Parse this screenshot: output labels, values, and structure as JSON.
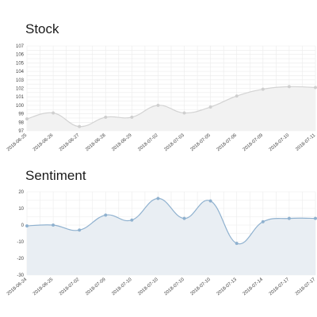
{
  "colors": {
    "stock_line": "#d3d3d3",
    "stock_fill": "#f2f2f2",
    "stock_point": "#cfcfcf",
    "sentiment_line": "#8fb1cf",
    "sentiment_fill": "#e9eef3",
    "sentiment_point": "#8fb1cf",
    "grid": "#ebebeb"
  },
  "chart_data": [
    {
      "type": "area",
      "title": "Stock",
      "xlabel": "",
      "ylabel": "",
      "ylim": [
        97,
        107
      ],
      "yticks": [
        97,
        98,
        99,
        100,
        101,
        102,
        103,
        104,
        105,
        106,
        107
      ],
      "grid": true,
      "categories": [
        "2018-06-25",
        "2018-06-26",
        "2018-06-27",
        "2018-06-28",
        "2018-06-29",
        "2018-07-02",
        "2018-07-03",
        "2018-07-05",
        "2018-07-06",
        "2018-07-09",
        "2018-07-10",
        "2018-07-11"
      ],
      "series": [
        {
          "values": [
            98.4,
            99.1,
            97.5,
            98.6,
            98.6,
            100.0,
            99.1,
            99.8,
            101.1,
            101.9,
            102.2,
            102.1
          ]
        }
      ]
    },
    {
      "type": "area",
      "title": "Sentiment",
      "xlabel": "",
      "ylabel": "",
      "ylim": [
        -30,
        20
      ],
      "yticks": [
        -30,
        -20,
        -10,
        0,
        10,
        20
      ],
      "grid": true,
      "categories": [
        "2018-06-24",
        "2018-06-25",
        "2018-07-02",
        "2018-07-09",
        "2018-07-10",
        "2018-07-10",
        "2018-07-10",
        "2018-07-10",
        "2018-07-13",
        "2018-07-14",
        "2018-07-17",
        "2018-07-17"
      ],
      "series": [
        {
          "values": [
            -0.5,
            0,
            -3,
            6,
            3,
            16,
            4,
            14.5,
            -11,
            2,
            4,
            4
          ]
        }
      ]
    }
  ]
}
